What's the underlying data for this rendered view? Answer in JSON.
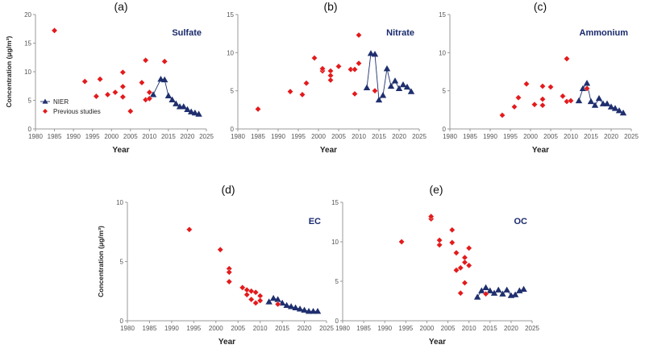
{
  "colors": {
    "nier": "#1f2f6e",
    "previous": "#e31a1c",
    "axis": "#999999"
  },
  "legend": {
    "nier": "NIER",
    "previous": "Previous studies"
  },
  "chart_data": [
    {
      "id": "a",
      "type": "scatter",
      "panel_label": "(a)",
      "title": "Sulfate",
      "xlabel": "Year",
      "ylabel": "Concentration (μg/m³)",
      "xlim": [
        1980,
        2025
      ],
      "ylim": [
        0,
        20
      ],
      "xticks": [
        1980,
        1985,
        1990,
        1995,
        2000,
        2005,
        2010,
        2015,
        2020,
        2025
      ],
      "yticks": [
        0,
        5,
        10,
        15,
        20
      ],
      "show_ylabel": true,
      "show_legend": true,
      "series": [
        {
          "name": "NIER",
          "x": [
            2011,
            2013,
            2014,
            2015,
            2016,
            2017,
            2018,
            2019,
            2020,
            2021,
            2022,
            2023
          ],
          "y": [
            6.0,
            8.7,
            8.6,
            5.8,
            5.1,
            4.4,
            3.9,
            3.9,
            3.4,
            3.0,
            2.8,
            2.6
          ]
        },
        {
          "name": "Previous studies",
          "x": [
            1985,
            1993,
            1996,
            1997,
            1999,
            2001,
            2003,
            2003,
            2003,
            2005,
            2008,
            2009,
            2009,
            2010,
            2010,
            2014
          ],
          "y": [
            17.2,
            8.3,
            5.7,
            8.7,
            6.0,
            6.4,
            9.9,
            7.4,
            5.6,
            3.1,
            8.1,
            12.0,
            5.1,
            6.4,
            5.3,
            11.8
          ]
        }
      ]
    },
    {
      "id": "b",
      "type": "scatter",
      "panel_label": "(b)",
      "title": "Nitrate",
      "xlabel": "Year",
      "ylabel": "",
      "xlim": [
        1980,
        2025
      ],
      "ylim": [
        0,
        15
      ],
      "xticks": [
        1980,
        1985,
        1990,
        1995,
        2000,
        2005,
        2010,
        2015,
        2020,
        2025
      ],
      "yticks": [
        0,
        5,
        10,
        15
      ],
      "show_ylabel": false,
      "show_legend": false,
      "series": [
        {
          "name": "NIER",
          "x": [
            2012,
            2013,
            2014,
            2015,
            2016,
            2017,
            2018,
            2019,
            2020,
            2021,
            2022,
            2023
          ],
          "y": [
            5.4,
            9.9,
            9.8,
            3.8,
            4.4,
            7.9,
            5.6,
            6.3,
            5.3,
            5.8,
            5.5,
            4.9
          ]
        },
        {
          "name": "Previous studies",
          "x": [
            1985,
            1993,
            1996,
            1997,
            1999,
            2001,
            2001,
            2003,
            2003,
            2003,
            2005,
            2008,
            2009,
            2009,
            2010,
            2010,
            2014
          ],
          "y": [
            2.6,
            4.9,
            4.5,
            6.0,
            9.3,
            7.6,
            7.9,
            7.6,
            7.0,
            6.4,
            8.2,
            7.8,
            7.8,
            4.6,
            12.3,
            8.6,
            5.0
          ]
        }
      ]
    },
    {
      "id": "c",
      "type": "scatter",
      "panel_label": "(c)",
      "title": "Ammonium",
      "xlabel": "Year",
      "ylabel": "",
      "xlim": [
        1980,
        2025
      ],
      "ylim": [
        0,
        15
      ],
      "xticks": [
        1980,
        1985,
        1990,
        1995,
        2000,
        2005,
        2010,
        2015,
        2020,
        2025
      ],
      "yticks": [
        0,
        5,
        10,
        15
      ],
      "show_ylabel": false,
      "show_legend": false,
      "series": [
        {
          "name": "NIER",
          "x": [
            2012,
            2013,
            2014,
            2015,
            2016,
            2017,
            2018,
            2019,
            2020,
            2021,
            2022,
            2023
          ],
          "y": [
            3.7,
            5.3,
            6.0,
            3.6,
            3.1,
            4.0,
            3.3,
            3.3,
            2.9,
            2.7,
            2.4,
            2.1
          ]
        },
        {
          "name": "Previous studies",
          "x": [
            1993,
            1996,
            1997,
            1999,
            2001,
            2003,
            2003,
            2003,
            2005,
            2008,
            2009,
            2009,
            2010,
            2014
          ],
          "y": [
            1.8,
            2.9,
            4.1,
            5.9,
            3.2,
            5.6,
            3.9,
            3.1,
            5.5,
            4.3,
            9.2,
            3.6,
            3.7,
            5.3
          ]
        }
      ]
    },
    {
      "id": "d",
      "type": "scatter",
      "panel_label": "(d)",
      "title": "EC",
      "xlabel": "Year",
      "ylabel": "Concentration (μg/m³)",
      "xlim": [
        1980,
        2025
      ],
      "ylim": [
        0,
        10
      ],
      "xticks": [
        1980,
        1985,
        1990,
        1995,
        2000,
        2005,
        2010,
        2015,
        2020,
        2025
      ],
      "yticks": [
        0,
        5,
        10
      ],
      "show_ylabel": true,
      "show_legend": false,
      "series": [
        {
          "name": "NIER",
          "x": [
            2012,
            2013,
            2014,
            2015,
            2016,
            2017,
            2018,
            2019,
            2020,
            2021,
            2022,
            2023
          ],
          "y": [
            1.6,
            1.9,
            1.8,
            1.5,
            1.3,
            1.2,
            1.1,
            1.0,
            0.9,
            0.8,
            0.8,
            0.8
          ]
        },
        {
          "name": "Previous studies",
          "x": [
            1994,
            2001,
            2003,
            2003,
            2003,
            2006,
            2007,
            2007,
            2008,
            2008,
            2009,
            2009,
            2010,
            2010,
            2014
          ],
          "y": [
            7.7,
            6.0,
            4.4,
            4.1,
            3.3,
            2.8,
            2.6,
            2.2,
            2.5,
            1.8,
            2.4,
            1.5,
            2.1,
            1.7,
            1.4
          ]
        }
      ]
    },
    {
      "id": "e",
      "type": "scatter",
      "panel_label": "(e)",
      "title": "OC",
      "xlabel": "Year",
      "ylabel": "",
      "xlim": [
        1980,
        2025
      ],
      "ylim": [
        0,
        15
      ],
      "xticks": [
        1980,
        1985,
        1990,
        1995,
        2000,
        2005,
        2010,
        2015,
        2020,
        2025
      ],
      "yticks": [
        0,
        5,
        10,
        15
      ],
      "show_ylabel": false,
      "show_legend": false,
      "series": [
        {
          "name": "NIER",
          "x": [
            2012,
            2013,
            2014,
            2015,
            2016,
            2017,
            2018,
            2019,
            2020,
            2021,
            2022,
            2023
          ],
          "y": [
            3.0,
            3.8,
            4.2,
            3.8,
            3.5,
            3.9,
            3.4,
            3.9,
            3.2,
            3.3,
            3.8,
            4.0
          ]
        },
        {
          "name": "Previous studies",
          "x": [
            1994,
            2001,
            2001,
            2003,
            2003,
            2006,
            2006,
            2007,
            2007,
            2008,
            2008,
            2009,
            2009,
            2009,
            2010,
            2010,
            2014
          ],
          "y": [
            10.0,
            12.9,
            13.2,
            9.6,
            10.2,
            11.5,
            9.9,
            6.4,
            8.6,
            6.7,
            3.5,
            8.0,
            4.8,
            7.4,
            9.2,
            7.0,
            3.4
          ]
        }
      ]
    }
  ]
}
